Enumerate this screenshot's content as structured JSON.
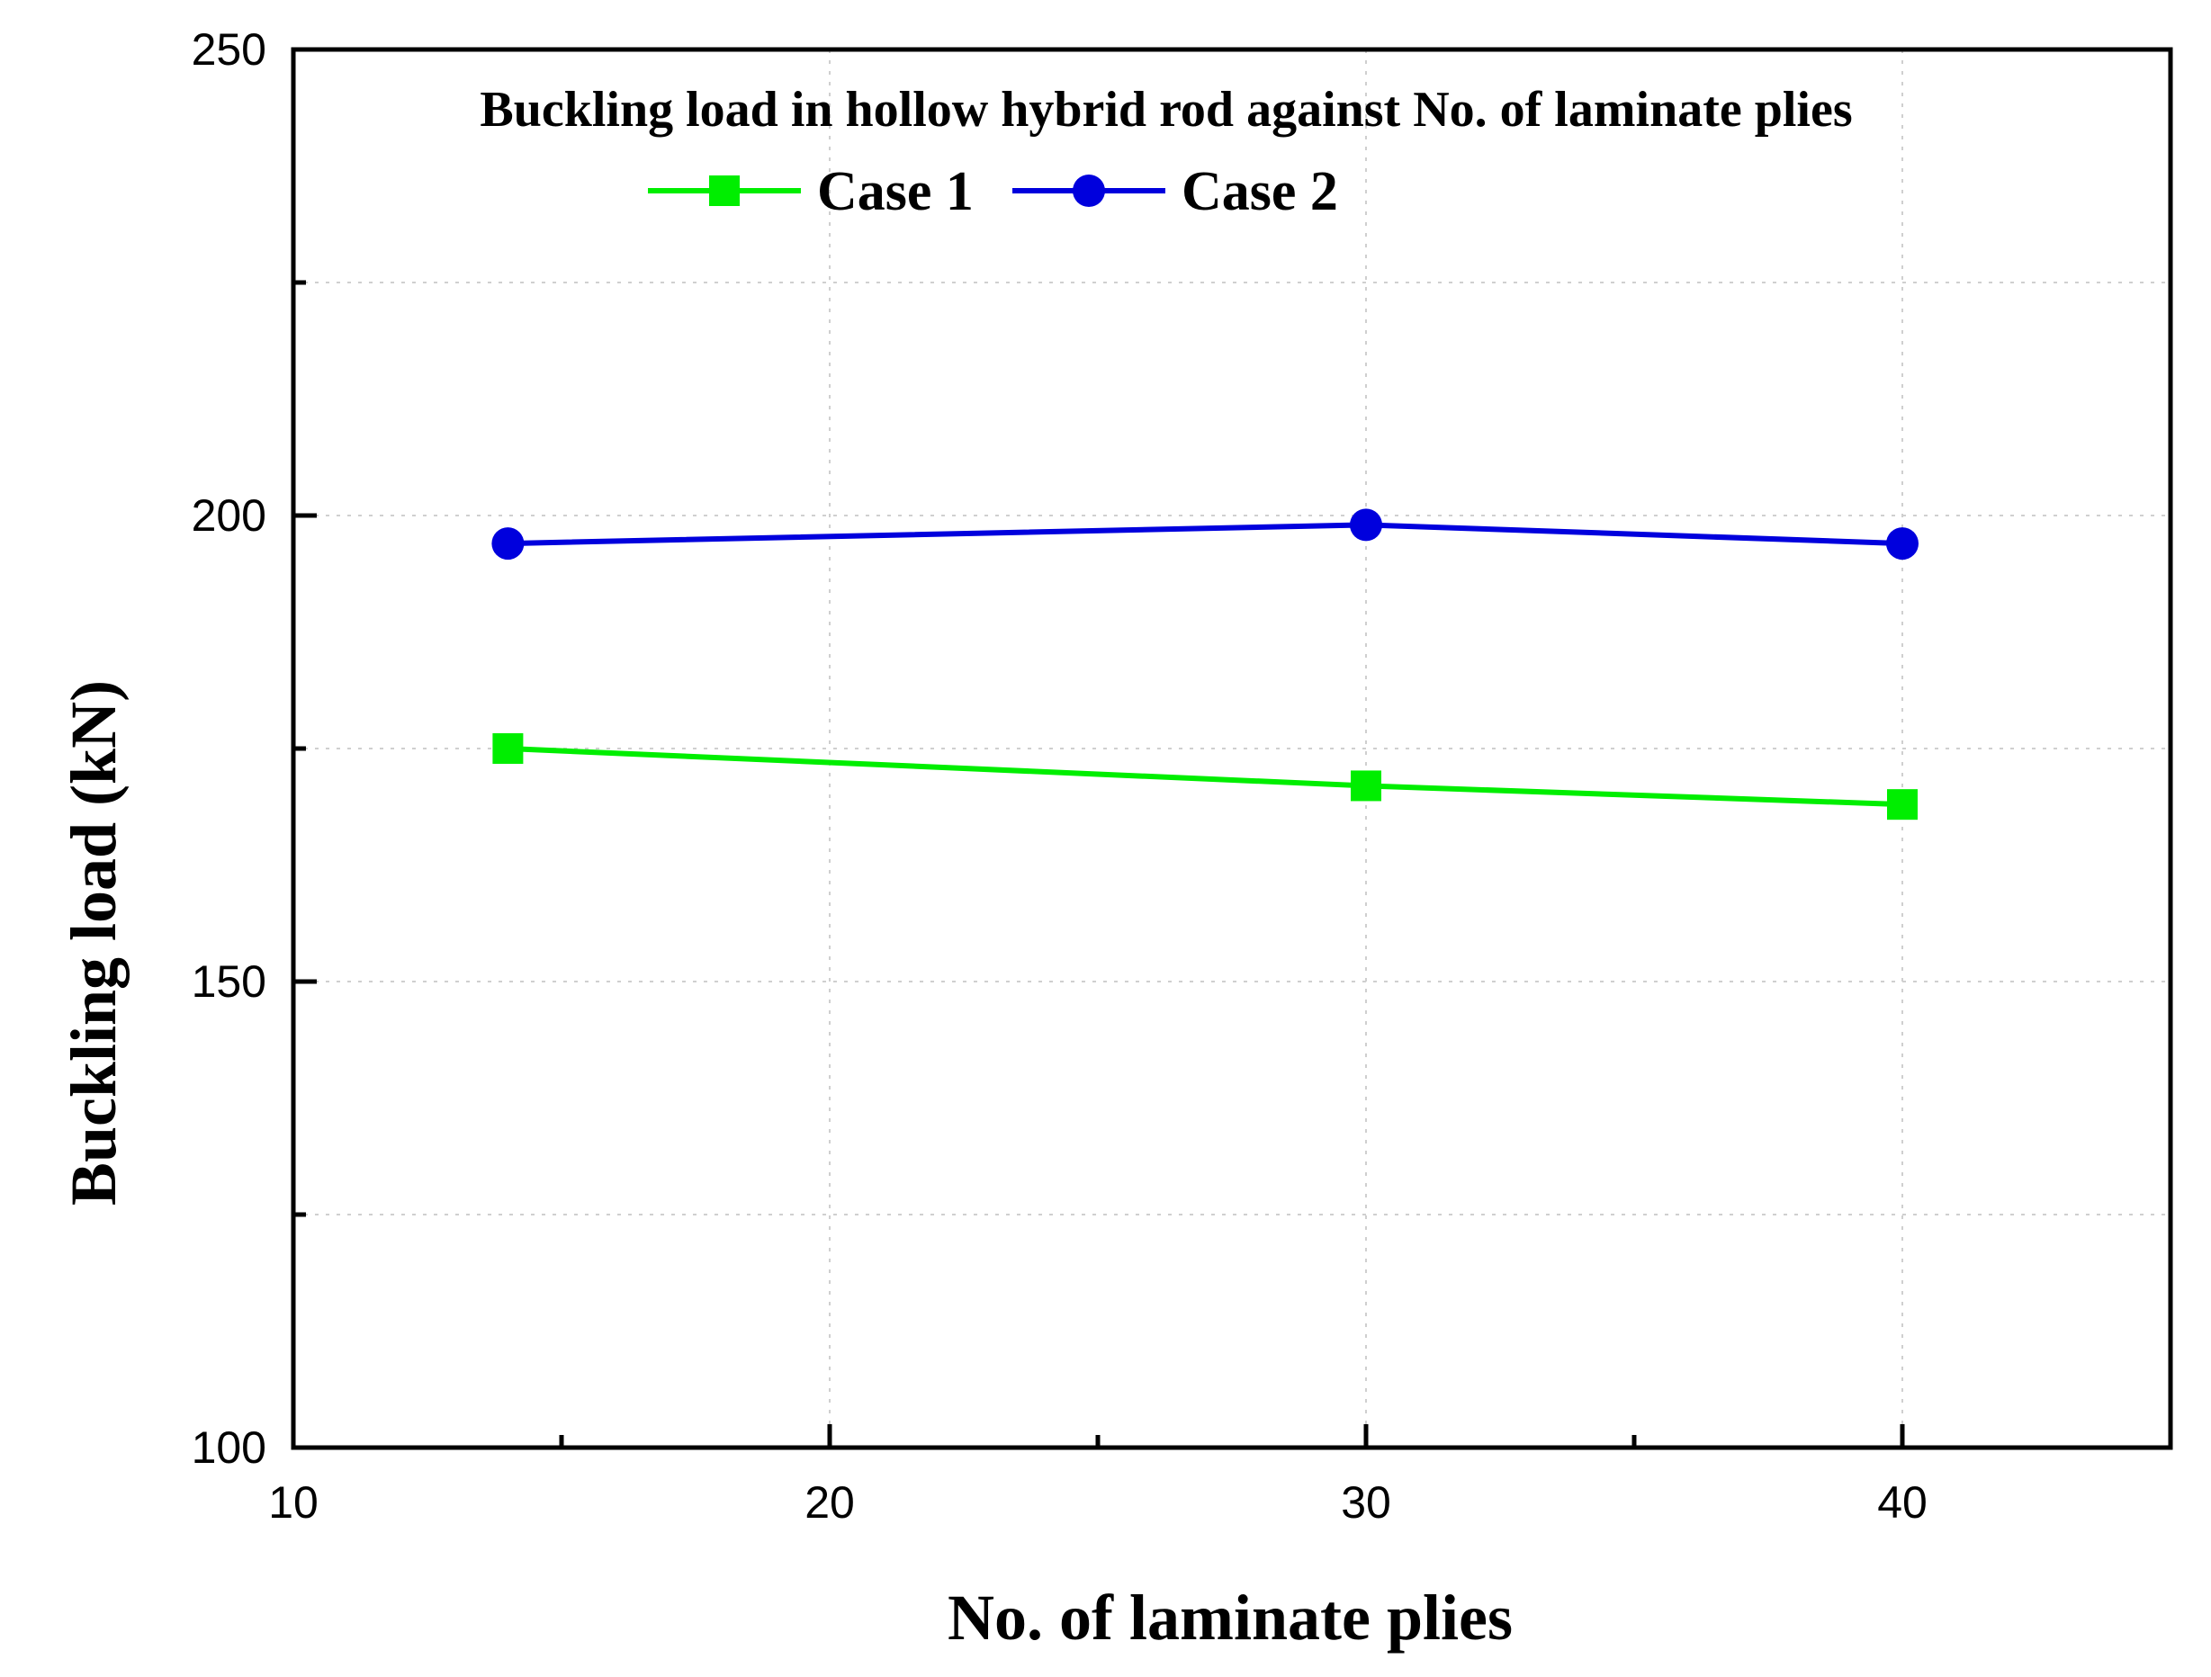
{
  "chart_data": {
    "type": "line",
    "title": "Buckling load in hollow hybrid rod against No. of laminate plies",
    "xlabel": "No. of laminate plies",
    "ylabel": "Buckling load (kN)",
    "xlim": [
      10,
      45
    ],
    "ylim": [
      100,
      250
    ],
    "x_ticks": [
      10,
      20,
      30,
      40
    ],
    "x_minor_ticks": [
      15,
      25,
      35
    ],
    "y_ticks": [
      100,
      150,
      200,
      250
    ],
    "y_minor_ticks": [
      125,
      175,
      225
    ],
    "grid": true,
    "legend_position": "top-center",
    "series": [
      {
        "name": "Case 1",
        "color": "#00ee00",
        "marker": "square",
        "x": [
          14,
          30,
          40
        ],
        "values": [
          175,
          171,
          169
        ]
      },
      {
        "name": "Case 2",
        "color": "#0000dd",
        "marker": "circle",
        "x": [
          14,
          30,
          40
        ],
        "values": [
          197,
          199,
          197
        ]
      }
    ]
  }
}
